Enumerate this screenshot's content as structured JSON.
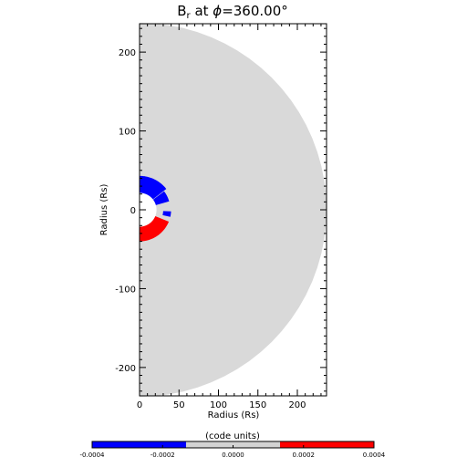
{
  "chart_data": {
    "type": "heatmap",
    "title": {
      "prefix": "B",
      "subscript": "r",
      "middle": " at ",
      "symbol": "ϕ",
      "value_text": "=360.00°"
    },
    "xlabel": "Radius (Rs)",
    "ylabel": "Radius (Rs)",
    "xlim": [
      0,
      237
    ],
    "ylim": [
      -236,
      236
    ],
    "x_ticks": [
      {
        "value": 0,
        "label": "0"
      },
      {
        "value": 50,
        "label": "50"
      },
      {
        "value": 100,
        "label": "100"
      },
      {
        "value": 150,
        "label": "150"
      },
      {
        "value": 200,
        "label": "200"
      }
    ],
    "y_ticks": [
      {
        "value": 200,
        "label": "200"
      },
      {
        "value": 100,
        "label": "100"
      },
      {
        "value": 0,
        "label": "0"
      },
      {
        "value": -100,
        "label": "-100"
      },
      {
        "value": -200,
        "label": "-200"
      }
    ],
    "domain": {
      "inner_radius": 21.5,
      "outer_radius": 237
    },
    "field_patches": [
      {
        "sign": "negative",
        "value": -0.0004,
        "r_in": 21.5,
        "r_out": 43,
        "theta_from": 38,
        "theta_to": 90
      },
      {
        "sign": "negative",
        "value": -0.0004,
        "r_in": 21.5,
        "r_out": 39,
        "theta_from": 16,
        "theta_to": 37
      },
      {
        "sign": "negative",
        "value": -0.0003,
        "r_in": 30,
        "r_out": 40,
        "theta_from": -13,
        "theta_to": -3
      },
      {
        "sign": "positive",
        "value": 0.0004,
        "r_in": 21.5,
        "r_out": 40,
        "theta_from": -90,
        "theta_to": -22
      }
    ],
    "colorbar": {
      "label": "(code units)",
      "range": [
        -0.0004,
        0.0004
      ],
      "tick_labels": [
        "-0.0004",
        "-0.0002",
        "0.0000",
        "0.0002",
        "0.0004"
      ],
      "segments": [
        {
          "from": -0.0004,
          "to": -0.00013333,
          "color": "#0000ff"
        },
        {
          "from": -0.00013333,
          "to": 0.00013333,
          "color": "#d3d3d3"
        },
        {
          "from": 0.00013333,
          "to": 0.0004,
          "color": "#ff0000"
        }
      ]
    },
    "colors": {
      "negative": "#0000ff",
      "neutral": "#d9d9d9",
      "positive": "#ff0000"
    }
  }
}
